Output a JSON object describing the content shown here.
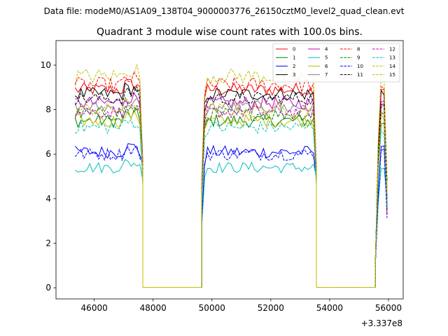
{
  "chart_data": {
    "type": "line",
    "suptitle": "Data file: modeM0/AS1A09_138T04_9000003776_26150cztM0_level2_quad_clean.evt",
    "title": "Quadrant 3 module wise count rates with 100.0s bins.",
    "xlabel": "",
    "ylabel": "",
    "offset_text": "+3.337e8",
    "xlim": [
      44700,
      56500
    ],
    "ylim": [
      -0.5,
      11.1
    ],
    "xticks": [
      46000,
      48000,
      50000,
      52000,
      54000,
      56000
    ],
    "xtick_labels": [
      "46000",
      "48000",
      "50000",
      "52000",
      "54000",
      "56000"
    ],
    "yticks": [
      0,
      2,
      4,
      6,
      8,
      10
    ],
    "ytick_labels": [
      "0",
      "2",
      "4",
      "6",
      "8",
      "10"
    ],
    "legend_loc": "upper right",
    "segments": [
      {
        "start": 45350,
        "end": 47650
      },
      {
        "start": 49650,
        "end": 53550
      },
      {
        "start": 55550,
        "end": 55950
      }
    ],
    "gap_bins": [
      [
        47650,
        47750,
        48000,
        49000,
        49500,
        49650
      ],
      [
        53550,
        53650,
        54000,
        55000,
        55400,
        55550
      ]
    ],
    "bin_width": 100,
    "series": [
      {
        "name": "0",
        "color": "#ff0000",
        "dash": false,
        "level": 8.9,
        "noise": 0.3
      },
      {
        "name": "1",
        "color": "#008000",
        "dash": false,
        "level": 7.5,
        "noise": 0.3
      },
      {
        "name": "2",
        "color": "#0000ff",
        "dash": false,
        "level": 6.1,
        "noise": 0.28
      },
      {
        "name": "3",
        "color": "#000000",
        "dash": false,
        "level": 8.7,
        "noise": 0.3
      },
      {
        "name": "4",
        "color": "#bf00bf",
        "dash": false,
        "level": 8.3,
        "noise": 0.3
      },
      {
        "name": "5",
        "color": "#00bfbf",
        "dash": false,
        "level": 5.4,
        "noise": 0.25
      },
      {
        "name": "6",
        "color": "#bfbf00",
        "dash": false,
        "level": 7.5,
        "noise": 0.3
      },
      {
        "name": "7",
        "color": "#808080",
        "dash": false,
        "level": 8.1,
        "noise": 0.3
      },
      {
        "name": "8",
        "color": "#ff0000",
        "dash": true,
        "level": 9.1,
        "noise": 0.35
      },
      {
        "name": "9",
        "color": "#008000",
        "dash": true,
        "level": 7.8,
        "noise": 0.3
      },
      {
        "name": "10",
        "color": "#0000ff",
        "dash": true,
        "level": 6.0,
        "noise": 0.28
      },
      {
        "name": "11",
        "color": "#000000",
        "dash": true,
        "level": 8.5,
        "noise": 0.3
      },
      {
        "name": "12",
        "color": "#bf00bf",
        "dash": true,
        "level": 7.9,
        "noise": 0.3
      },
      {
        "name": "13",
        "color": "#00bfbf",
        "dash": true,
        "level": 7.2,
        "noise": 0.3
      },
      {
        "name": "14",
        "color": "#bfbf00",
        "dash": true,
        "level": 9.5,
        "noise": 0.35
      },
      {
        "name": "15",
        "color": "#bfbf00",
        "dash": true,
        "level": 8.0,
        "noise": 0.3
      }
    ]
  }
}
